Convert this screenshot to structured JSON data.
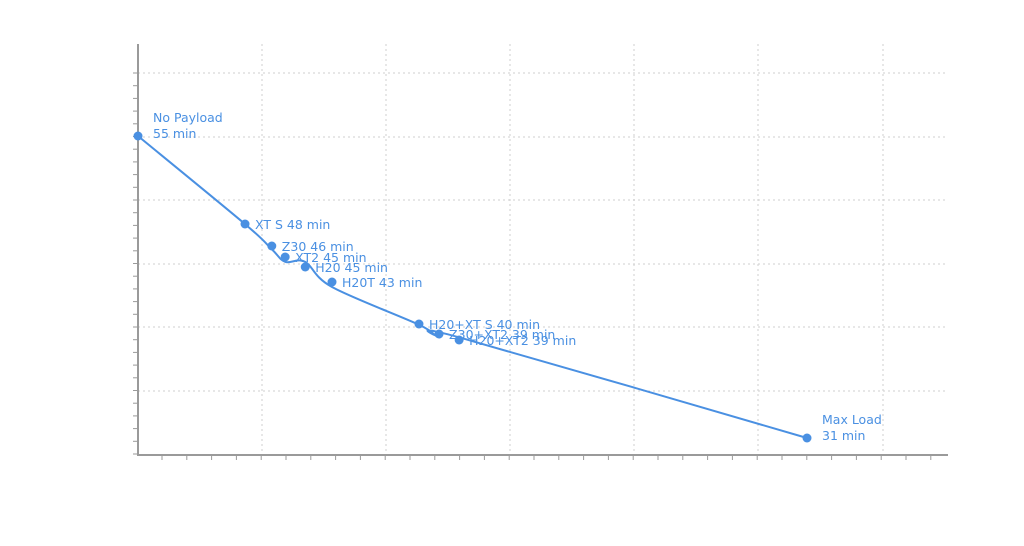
{
  "chart_data": {
    "type": "line",
    "title": "",
    "xlabel": "",
    "ylabel": "",
    "ylim": [
      30,
      55
    ],
    "grid": true,
    "colors": {
      "series": "#4a90e2"
    },
    "series": [
      {
        "values": [
          {
            "x": 0,
            "y": 55,
            "label_line1": "No Payload",
            "label_line2": "55 min"
          },
          {
            "x": 0.16,
            "y": 48,
            "label": "XT S 48 min"
          },
          {
            "x": 0.2,
            "y": 46,
            "label": "Z30 46 min"
          },
          {
            "x": 0.22,
            "y": 45,
            "label": "XT2 45 min"
          },
          {
            "x": 0.25,
            "y": 45,
            "label": "H20 45 min"
          },
          {
            "x": 0.29,
            "y": 43,
            "label": "H20T 43 min"
          },
          {
            "x": 0.42,
            "y": 40,
            "label": "H20+XT S 40 min"
          },
          {
            "x": 0.45,
            "y": 39,
            "label": "Z30+XT2 39 min"
          },
          {
            "x": 0.48,
            "y": 39,
            "label": "H20+XT2 39 min"
          },
          {
            "x": 1,
            "y": 31,
            "label_line1": "Max Load",
            "label_line2": "31 min"
          }
        ]
      }
    ]
  }
}
